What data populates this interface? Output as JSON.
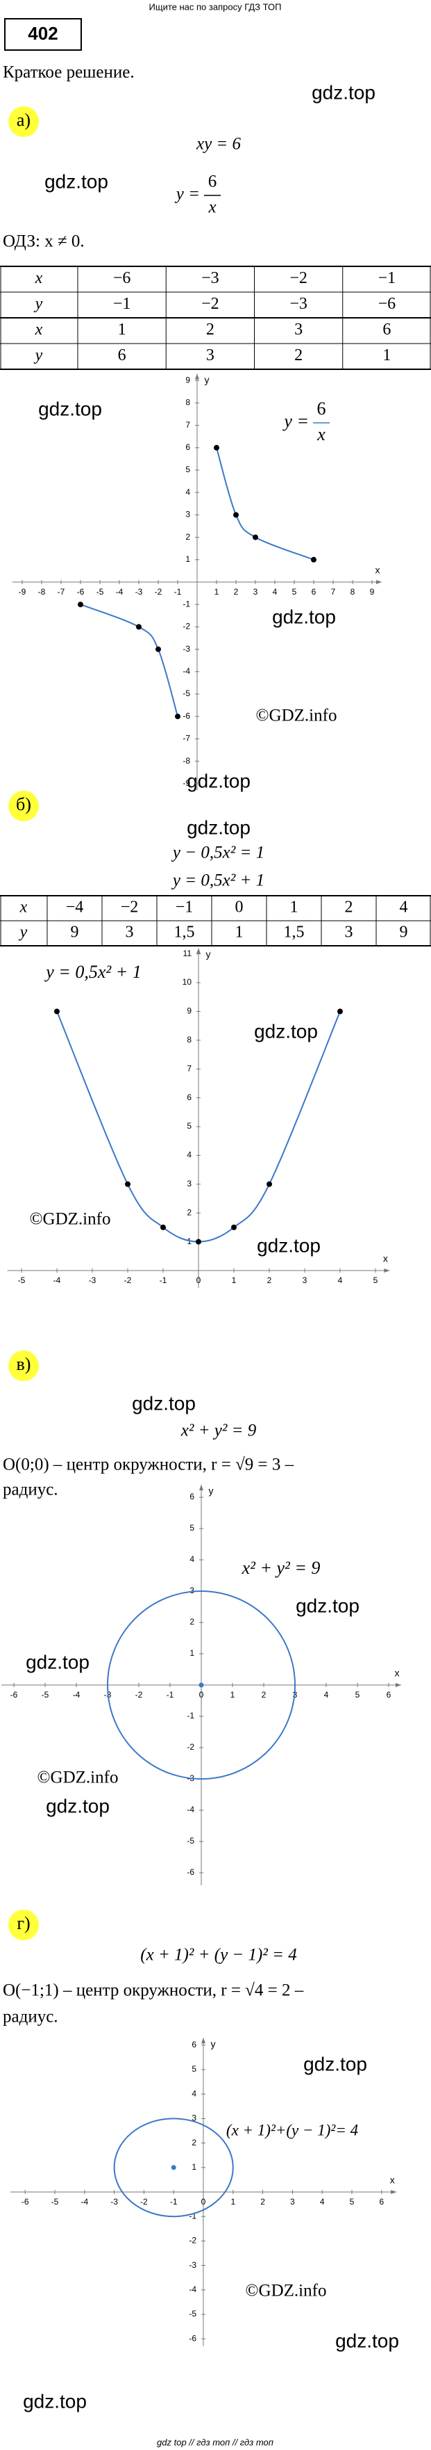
{
  "banner": "Ищите нас по запросу ГДЗ ТОП",
  "number": "402",
  "intro": "Краткое решение.",
  "watermarks": [
    "gdz.top",
    "gdz.top",
    "gdz.top",
    "gdz.top",
    "©GDZ.info",
    "gdz.top",
    "gdz.top",
    "gdz.top",
    "©GDZ.info",
    "gdz.top",
    "gdz.top",
    "gdz.top",
    "gdz.top",
    "©GDZ.info",
    "gdz.top",
    "gdz.top",
    "©GDZ.info",
    "gdz.top",
    "gdz.top"
  ],
  "parts": [
    {
      "label": "а)",
      "lines": [
        "xy = 6"
      ],
      "fraction": {
        "lhs": "y =",
        "num": "6",
        "den": "x"
      },
      "domain": "ОДЗ: x ≠ 0.",
      "table": {
        "rows": [
          [
            "x",
            "−6",
            "−3",
            "−2",
            "−1"
          ],
          [
            "y",
            "−1",
            "−2",
            "−3",
            "−6"
          ],
          [
            "x",
            "1",
            "2",
            "3",
            "6"
          ],
          [
            "y",
            "6",
            "3",
            "2",
            "1"
          ]
        ]
      },
      "graph": {
        "xlabel": "x",
        "ylabel": "y",
        "label": {
          "lhs": "y =",
          "num": "6",
          "den": "x"
        },
        "xlim": [
          -9.5,
          9.5
        ],
        "ylim": [
          -9.3,
          9.3
        ],
        "xticks": [
          -9,
          -8,
          -7,
          -6,
          -5,
          -4,
          -3,
          -2,
          -1,
          1,
          2,
          3,
          4,
          5,
          6,
          7,
          8,
          9
        ],
        "yticks": [
          -9,
          -8,
          -7,
          -6,
          -5,
          -4,
          -3,
          -2,
          -1,
          1,
          2,
          3,
          4,
          5,
          6,
          7,
          8,
          9
        ],
        "branches": [
          {
            "x": [
              -6,
              -3,
              -2,
              -1
            ],
            "y": [
              -1,
              -2,
              -3,
              -6
            ]
          },
          {
            "x": [
              1,
              2,
              3,
              6
            ],
            "y": [
              6,
              3,
              2,
              1
            ]
          }
        ]
      }
    },
    {
      "label": "б)",
      "lines": [
        "y − 0,5x² = 1",
        "y = 0,5x² + 1"
      ],
      "table": {
        "rows": [
          [
            "x",
            "−4",
            "−2",
            "−1",
            "0",
            "1",
            "2",
            "4"
          ],
          [
            "y",
            "9",
            "3",
            "1,5",
            "1",
            "1,5",
            "3",
            "9"
          ]
        ]
      },
      "graph": {
        "xlabel": "x",
        "ylabel": "y",
        "text_label": "y = 0,5x² + 1",
        "xlim": [
          -5.4,
          5.4
        ],
        "ylim": [
          -0.6,
          11.2
        ],
        "xticks": [
          -5,
          -4,
          -3,
          -2,
          -1,
          0,
          1,
          2,
          3,
          4,
          5
        ],
        "yticks": [
          1,
          2,
          3,
          4,
          5,
          6,
          7,
          8,
          9,
          10,
          11
        ],
        "branches": [
          {
            "x": [
              -4,
              -2,
              -1,
              0,
              1,
              2,
              4
            ],
            "y": [
              9,
              3,
              1.5,
              1,
              1.5,
              3,
              9
            ]
          }
        ]
      }
    },
    {
      "label": "в)",
      "lines": [
        "x² + y² = 9"
      ],
      "text": [
        "O(0;0) – центр окружности, r = √9 = 3 –",
        "радиус."
      ],
      "graph": {
        "xlabel": "x",
        "ylabel": "y",
        "text_label": "x² + y² = 9",
        "xlim": [
          -6.4,
          6.4
        ],
        "ylim": [
          -6.4,
          6.4
        ],
        "xticks": [
          -6,
          -5,
          -4,
          -3,
          -2,
          -1,
          0,
          1,
          2,
          3,
          4,
          5,
          6
        ],
        "yticks": [
          -6,
          -5,
          -4,
          -3,
          -2,
          -1,
          1,
          2,
          3,
          4,
          5,
          6
        ],
        "circle": {
          "cx": 0,
          "cy": 0,
          "r": 3
        }
      }
    },
    {
      "label": "г)",
      "lines": [
        "(x + 1)² + (y − 1)² = 4"
      ],
      "text": [
        "O(−1;1) – центр окружности, r = √4 = 2 –",
        "радиус."
      ],
      "graph": {
        "xlabel": "x",
        "ylabel": "y",
        "text_label": "(x + 1)²+(y − 1)²= 4",
        "xlim": [
          -6.5,
          6.5
        ],
        "ylim": [
          -6.3,
          6.3
        ],
        "xticks": [
          -6,
          -5,
          -4,
          -3,
          -2,
          -1,
          0,
          1,
          2,
          3,
          4,
          5,
          6
        ],
        "yticks": [
          -6,
          -5,
          -4,
          -3,
          -2,
          -1,
          1,
          2,
          3,
          4,
          5,
          6
        ],
        "circle": {
          "cx": -1,
          "cy": 1,
          "r": 2
        }
      }
    }
  ],
  "footer": "gdz top // гдз топ // гдз топ"
}
